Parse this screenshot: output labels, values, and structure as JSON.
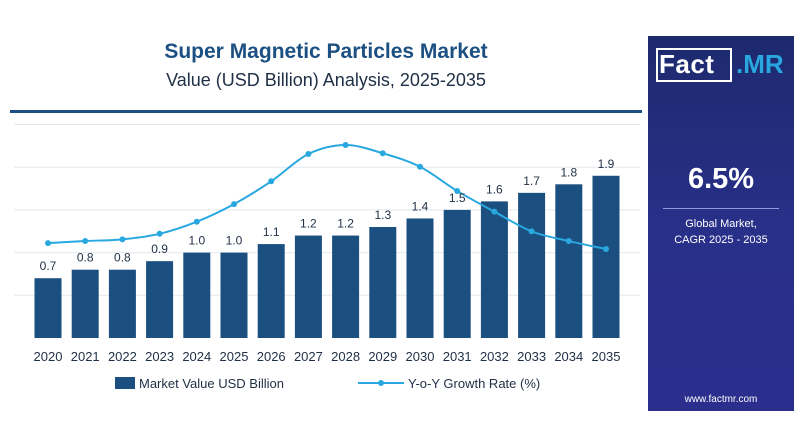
{
  "header": {
    "title": "Super Magnetic Particles Market",
    "subtitle": "Value (USD Billion) Analysis, 2025-2035"
  },
  "sidebar": {
    "logo_left": "Fact",
    "logo_right": ".MR",
    "cagr_value": "6.5%",
    "cagr_label_line1": "Global Market,",
    "cagr_label_line2": "CAGR 2025 - 2035",
    "website": "www.factmr.com"
  },
  "colors": {
    "bar": "#1b4f80",
    "line": "#29a8e0",
    "sidebar": "#29308a",
    "title": "#1c4f82"
  },
  "chart_data": {
    "type": "bar",
    "categories": [
      "2020",
      "2021",
      "2022",
      "2023",
      "2024",
      "2025",
      "2026",
      "2027",
      "2028",
      "2029",
      "2030",
      "2031",
      "2032",
      "2033",
      "2034",
      "2035"
    ],
    "ylim": [
      0,
      2.6
    ],
    "grid": true,
    "legend_position": "bottom",
    "series": [
      {
        "name": "Market Value USD Billion",
        "kind": "bar",
        "values": [
          0.7,
          0.8,
          0.8,
          0.9,
          1.0,
          1.0,
          1.1,
          1.2,
          1.2,
          1.3,
          1.4,
          1.5,
          1.6,
          1.7,
          1.8,
          1.9
        ],
        "labels": [
          "0.7",
          "0.8",
          "0.8",
          "0.9",
          "1.0",
          "1.0",
          "1.1",
          "1.2",
          "1.2",
          "1.3",
          "1.4",
          "1.5",
          "1.6",
          "1.7",
          "1.8",
          "1.9"
        ]
      },
      {
        "name": "Y-o-Y Growth Rate (%)",
        "kind": "line",
        "axis": "secondary-unlabeled",
        "values": [
          1.7,
          2.3,
          2.8,
          4.4,
          7.9,
          13.0,
          19.6,
          27.5,
          30.1,
          27.7,
          23.8,
          16.8,
          10.8,
          5.1,
          2.3,
          0.0
        ]
      }
    ]
  }
}
